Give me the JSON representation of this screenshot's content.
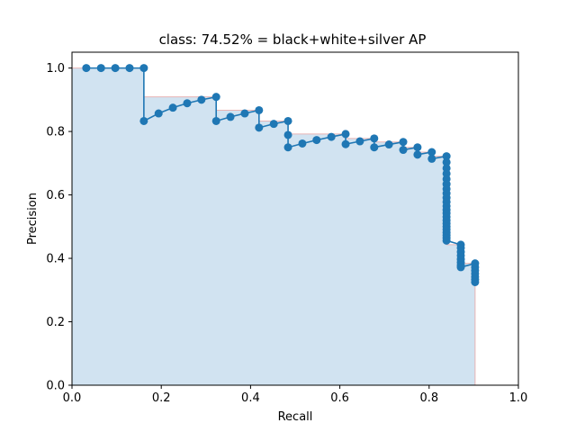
{
  "chart_data": {
    "type": "line",
    "title": "class: 74.52% = black+white+silver AP",
    "xlabel": "Recall",
    "ylabel": "Precision",
    "xlim": [
      0.0,
      1.0
    ],
    "ylim": [
      0.0,
      1.05
    ],
    "xticks": [
      "0.0",
      "0.2",
      "0.4",
      "0.6",
      "0.8",
      "1.0"
    ],
    "yticks": [
      "0.0",
      "0.2",
      "0.4",
      "0.6",
      "0.8",
      "1.0"
    ],
    "grid": false,
    "colors": {
      "series": "#1f77b4",
      "fill": "#d1e3f1",
      "envelope": "#e8b4b4"
    },
    "series": [
      {
        "x": [
          0.032,
          0.065,
          0.097,
          0.129,
          0.161,
          0.161,
          0.194,
          0.226,
          0.258,
          0.29,
          0.323,
          0.323,
          0.355,
          0.387,
          0.419,
          0.419,
          0.452,
          0.484,
          0.484,
          0.484,
          0.516,
          0.548,
          0.581,
          0.613,
          0.613,
          0.645,
          0.677,
          0.677,
          0.71,
          0.742,
          0.742,
          0.774,
          0.774,
          0.806,
          0.806,
          0.839,
          0.839,
          0.839,
          0.839,
          0.839,
          0.839,
          0.839,
          0.839,
          0.839,
          0.839,
          0.839,
          0.839,
          0.839,
          0.839,
          0.839,
          0.839,
          0.839,
          0.839,
          0.839,
          0.839,
          0.839,
          0.839,
          0.871,
          0.871,
          0.871,
          0.871,
          0.871,
          0.871,
          0.871,
          0.871,
          0.903,
          0.903,
          0.903,
          0.903,
          0.903,
          0.903,
          0.903
        ],
        "y": [
          1.0,
          1.0,
          1.0,
          1.0,
          1.0,
          0.833,
          0.857,
          0.875,
          0.889,
          0.9,
          0.909,
          0.833,
          0.846,
          0.857,
          0.867,
          0.812,
          0.824,
          0.833,
          0.789,
          0.75,
          0.762,
          0.773,
          0.783,
          0.792,
          0.76,
          0.769,
          0.778,
          0.75,
          0.759,
          0.767,
          0.742,
          0.75,
          0.727,
          0.735,
          0.714,
          0.722,
          0.703,
          0.684,
          0.667,
          0.65,
          0.634,
          0.619,
          0.605,
          0.591,
          0.578,
          0.565,
          0.553,
          0.542,
          0.531,
          0.52,
          0.51,
          0.5,
          0.491,
          0.481,
          0.473,
          0.464,
          0.456,
          0.443,
          0.433,
          0.42,
          0.409,
          0.397,
          0.387,
          0.378,
          0.372,
          0.384,
          0.372,
          0.362,
          0.352,
          0.342,
          0.333,
          0.325
        ]
      }
    ],
    "envelope": {
      "x": [
        0.0,
        0.161,
        0.161,
        0.323,
        0.323,
        0.419,
        0.419,
        0.484,
        0.484,
        0.613,
        0.613,
        0.677,
        0.677,
        0.742,
        0.742,
        0.774,
        0.774,
        0.806,
        0.806,
        0.839,
        0.839,
        0.871,
        0.871,
        0.903,
        0.903
      ],
      "y": [
        1.0,
        1.0,
        0.909,
        0.909,
        0.867,
        0.867,
        0.833,
        0.833,
        0.792,
        0.792,
        0.778,
        0.778,
        0.767,
        0.767,
        0.75,
        0.75,
        0.735,
        0.735,
        0.722,
        0.722,
        0.443,
        0.443,
        0.384,
        0.384,
        0.0
      ]
    }
  }
}
